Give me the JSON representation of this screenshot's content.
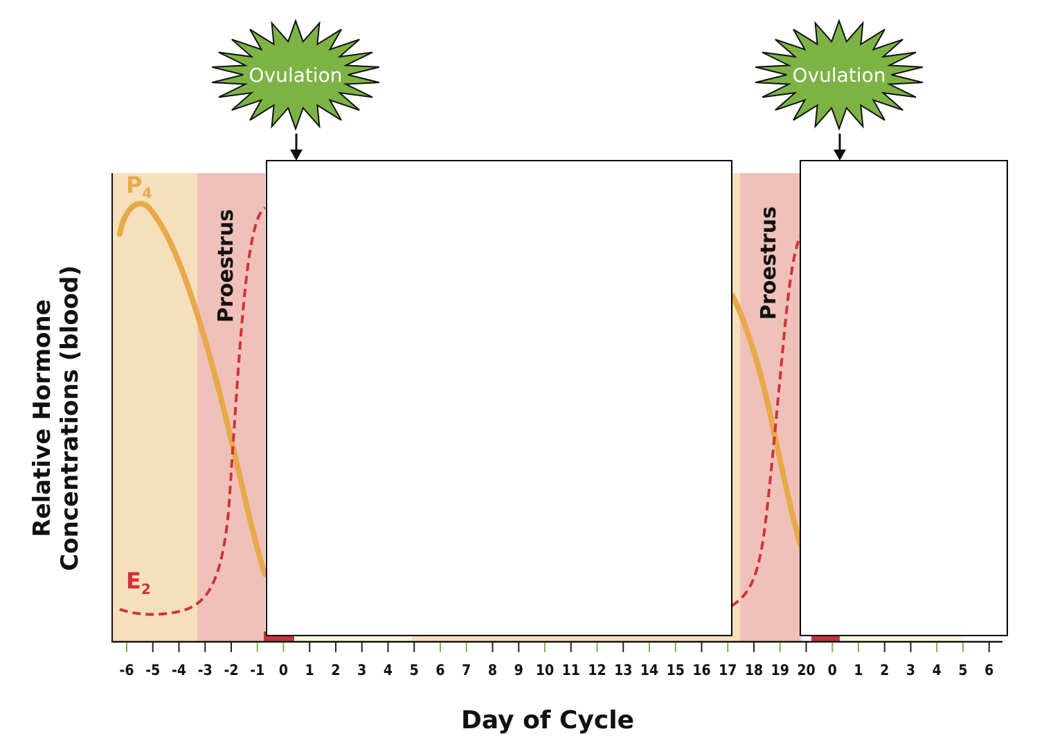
{
  "chart_data": {
    "type": "line",
    "xlabel": "Day of Cycle",
    "ylabel_line1": "Relative Hormone",
    "ylabel_line2": "Concentrations (blood)",
    "x_tick_labels": [
      "-6",
      "-5",
      "-4",
      "-3",
      "-2",
      "-1",
      "0",
      "1",
      "2",
      "3",
      "4",
      "5",
      "6",
      "7",
      "8",
      "9",
      "10",
      "11",
      "12",
      "13",
      "14",
      "15",
      "16",
      "17",
      "18",
      "19",
      "20",
      "0",
      "1",
      "2",
      "3",
      "4",
      "5",
      "6"
    ],
    "series": [
      {
        "name": "P4",
        "label_main": "P",
        "label_sub": "4",
        "color": "#e8a94a",
        "style": "solid"
      },
      {
        "name": "E2",
        "label_main": "E",
        "label_sub": "2",
        "color": "#d0323c",
        "style": "dashed"
      }
    ],
    "annotations": {
      "ovulation": "Ovulation",
      "phase": "Proestrus"
    },
    "colors": {
      "diestrus_band": "#f6dfbb",
      "proestrus_band": "#efc1b8",
      "estrus_strip": "#c2343a",
      "metestrus_strip": "#fbf2dc",
      "starburst": "#7db344"
    }
  }
}
